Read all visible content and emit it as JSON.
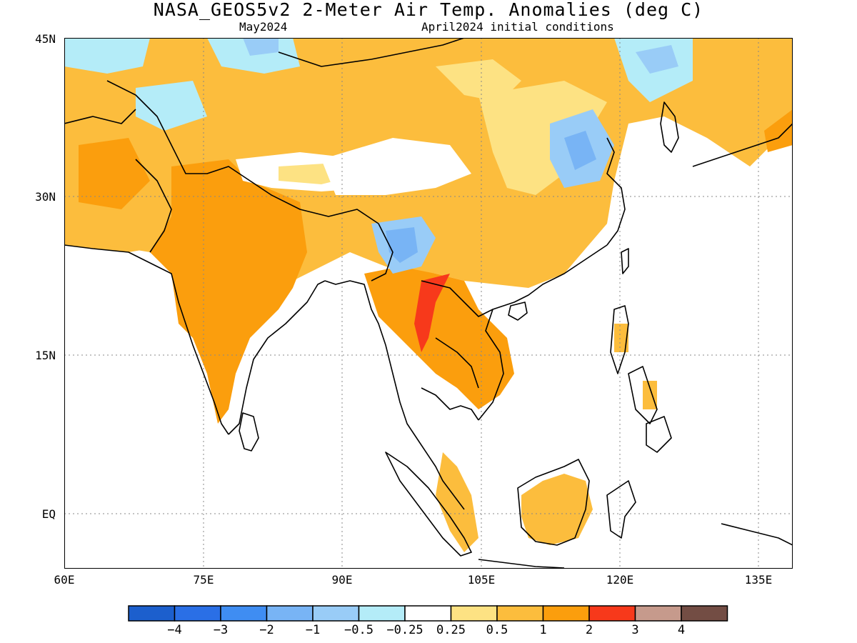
{
  "title": "NASA_GEOS5v2 2-Meter Air Temp. Anomalies (deg C)",
  "subtitle_left": "May2024",
  "subtitle_right": "April2024 initial conditions",
  "lat_labels": [
    "45N",
    "30N",
    "15N",
    "EQ"
  ],
  "lon_labels": [
    "60E",
    "75E",
    "90E",
    "105E",
    "120E",
    "135E"
  ],
  "colorbar": {
    "colors": [
      "#1c5fcd",
      "#2a6fe6",
      "#3f8df2",
      "#78b4f5",
      "#99ccf7",
      "#b4ecf8",
      "#ffffff",
      "#fde283",
      "#fcbd3d",
      "#fb9e0d",
      "#f7391b",
      "#c69a8c",
      "#734d44"
    ],
    "labels": [
      "−4",
      "−3",
      "−2",
      "−1",
      "−0.5",
      "−0.25",
      "0.25",
      "0.5",
      "1",
      "2",
      "3",
      "4"
    ]
  }
}
